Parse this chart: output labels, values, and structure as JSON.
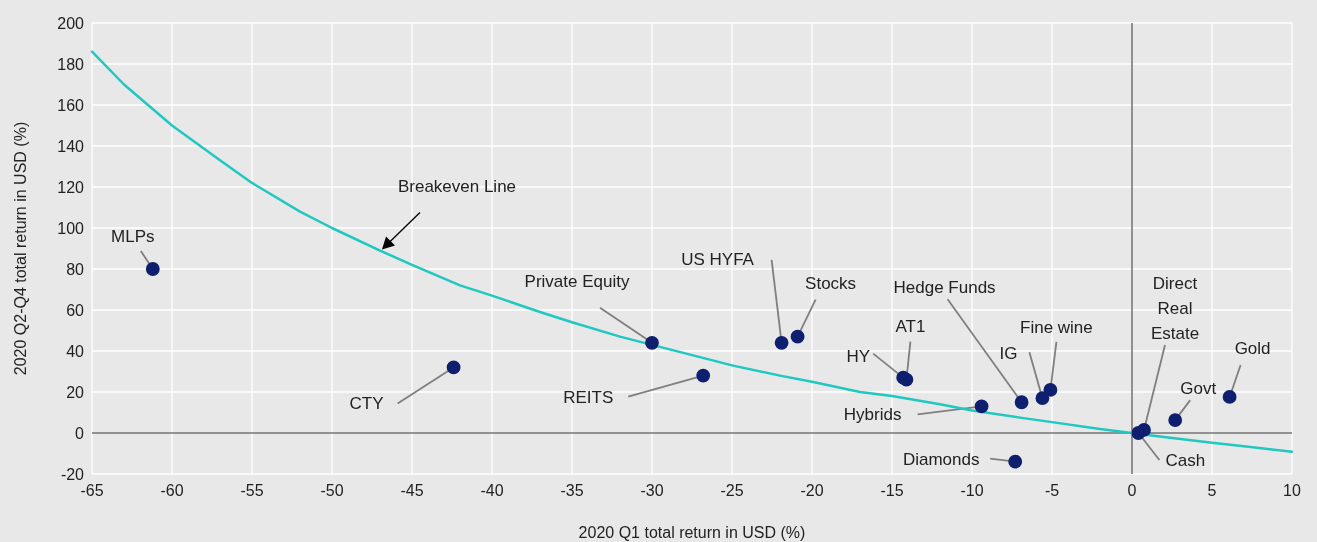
{
  "chart_data": {
    "type": "scatter",
    "xlabel": "2020 Q1 total return in USD (%)",
    "ylabel": "2020 Q2-Q4 total return in USD (%)",
    "xlim": [
      -65,
      10
    ],
    "xticks": [
      -65,
      -60,
      -55,
      -50,
      -45,
      -40,
      -35,
      -30,
      -25,
      -20,
      -15,
      -10,
      -5,
      0,
      5,
      10
    ],
    "ylim": [
      -20,
      200
    ],
    "yticks": [
      -20,
      0,
      20,
      40,
      60,
      80,
      100,
      120,
      140,
      160,
      180,
      200
    ],
    "grid": true,
    "marker": "circle",
    "series": [
      {
        "name": "Breakeven Line",
        "type": "line",
        "marker": "none",
        "color": "#1fc8c0",
        "x": [
          -65,
          -63,
          -60,
          -57,
          -55,
          -52,
          -50,
          -47,
          -45,
          -42,
          -40,
          -37,
          -35,
          -32,
          -30,
          -27,
          -25,
          -22,
          -20,
          -17,
          -15,
          -12,
          -10,
          -7,
          -5,
          -2,
          0,
          2,
          5,
          7,
          10
        ],
        "values": [
          186,
          170,
          150,
          133,
          122,
          108,
          100,
          89,
          82,
          72,
          67,
          59,
          54,
          47,
          43,
          37,
          33,
          28,
          25,
          20,
          18,
          14,
          11,
          7.5,
          5.3,
          2,
          0,
          -2,
          -4.8,
          -6.5,
          -9.1
        ]
      },
      {
        "color": "#0d1f6e",
        "x": [
          -61.2,
          -42.4,
          -30,
          -26.8,
          -21.9,
          -20.9,
          -14.3,
          -14.1,
          -9.4,
          -6.9,
          -5.6,
          -5.1,
          -7.3,
          0.75,
          0.4,
          2.7,
          6.1
        ],
        "values": [
          80,
          32,
          44,
          28,
          44,
          47,
          27,
          26,
          13,
          15,
          17,
          21,
          -14,
          1.5,
          0,
          6.3,
          17.6
        ]
      }
    ],
    "annotations": [
      {
        "text": "MLPs",
        "x": -61.2,
        "y": 80
      },
      {
        "text": "CTY",
        "x": -42.4,
        "y": 32
      },
      {
        "text": "Private Equity",
        "x": -30,
        "y": 44
      },
      {
        "text": "REITS",
        "x": -26.8,
        "y": 28
      },
      {
        "text": "US HYFA",
        "x": -21.9,
        "y": 44
      },
      {
        "text": "Stocks",
        "x": -20.9,
        "y": 47
      },
      {
        "text": "HY",
        "x": -14.3,
        "y": 27
      },
      {
        "text": "AT1",
        "x": -14.1,
        "y": 26
      },
      {
        "text": "Hybrids",
        "x": -9.4,
        "y": 13
      },
      {
        "text": "Hedge Funds",
        "x": -6.9,
        "y": 15
      },
      {
        "text": "IG",
        "x": -5.6,
        "y": 17
      },
      {
        "text": "Fine wine",
        "x": -5.1,
        "y": 21
      },
      {
        "text": "Diamonds",
        "x": -7.3,
        "y": -14
      },
      {
        "text": "Direct Real Estate",
        "x": 0.75,
        "y": 1.5
      },
      {
        "text": "Cash",
        "x": 0.4,
        "y": 0
      },
      {
        "text": "Govt",
        "x": 2.7,
        "y": 6.3
      },
      {
        "text": "Gold",
        "x": 6.1,
        "y": 17.6
      }
    ]
  }
}
